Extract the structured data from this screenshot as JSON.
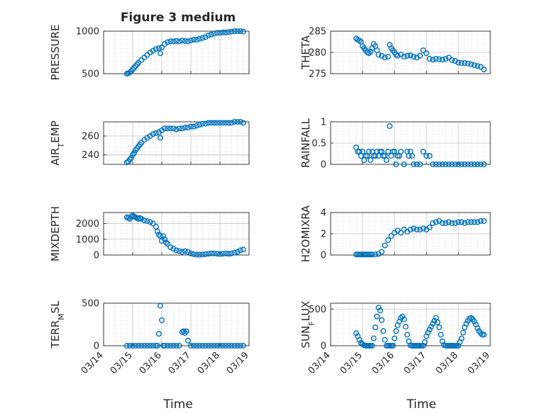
{
  "figure_title": "Figure 3 medium",
  "colors": {
    "marker": "#0072BD",
    "axis": "#262626",
    "grid": "#d0d0d0"
  },
  "chart_data": [
    {
      "type": "scatter",
      "ylabel": "PRESSURE",
      "title": "Figure 3 medium",
      "xlim": [
        0,
        5
      ],
      "ylim": [
        500,
        1000
      ],
      "yticks": [
        500,
        1000
      ],
      "xticklabels": [
        "03/14",
        "03/15",
        "03/16",
        "03/17",
        "03/18",
        "03/19"
      ],
      "x": [
        0.8,
        0.85,
        0.9,
        0.95,
        1.0,
        1.05,
        1.1,
        1.15,
        1.2,
        1.3,
        1.4,
        1.5,
        1.6,
        1.7,
        1.8,
        1.9,
        1.95,
        2.0,
        2.1,
        2.2,
        2.3,
        2.4,
        2.5,
        2.6,
        2.7,
        2.8,
        2.9,
        3.0,
        3.1,
        3.2,
        3.3,
        3.4,
        3.5,
        3.6,
        3.7,
        3.8,
        3.9,
        4.0,
        4.1,
        4.2,
        4.3,
        4.4,
        4.5,
        4.6,
        4.7,
        4.8
      ],
      "y": [
        500,
        505,
        515,
        530,
        550,
        570,
        590,
        610,
        630,
        660,
        690,
        720,
        750,
        770,
        790,
        800,
        740,
        810,
        850,
        870,
        880,
        880,
        885,
        880,
        890,
        885,
        880,
        890,
        900,
        900,
        910,
        920,
        930,
        950,
        960,
        970,
        980,
        980,
        985,
        985,
        990,
        995,
        1000,
        1000,
        1000,
        995
      ]
    },
    {
      "type": "scatter",
      "ylabel": "THETA",
      "xlim": [
        0,
        5
      ],
      "ylim": [
        275,
        285
      ],
      "yticks": [
        275,
        280,
        285
      ],
      "xticklabels": [
        "03/14",
        "03/15",
        "03/16",
        "03/17",
        "03/18",
        "03/19"
      ],
      "x": [
        0.8,
        0.85,
        0.9,
        0.95,
        1.0,
        1.05,
        1.1,
        1.15,
        1.2,
        1.25,
        1.3,
        1.35,
        1.4,
        1.45,
        1.5,
        1.6,
        1.7,
        1.8,
        1.85,
        1.9,
        1.95,
        2.0,
        2.05,
        2.1,
        2.2,
        2.3,
        2.4,
        2.5,
        2.6,
        2.7,
        2.8,
        2.9,
        3.0,
        3.1,
        3.2,
        3.3,
        3.4,
        3.5,
        3.6,
        3.7,
        3.8,
        3.9,
        4.0,
        4.1,
        4.2,
        4.3,
        4.4,
        4.5,
        4.6,
        4.7,
        4.8
      ],
      "y": [
        283.3,
        283.0,
        282.8,
        282.5,
        281.5,
        281.0,
        280.5,
        280.0,
        279.8,
        280.2,
        281.0,
        282.0,
        281.5,
        280.5,
        279.5,
        279.2,
        278.8,
        279.0,
        281.8,
        281.0,
        280.5,
        280.0,
        279.5,
        279.2,
        279.5,
        279.0,
        279.2,
        279.3,
        279.0,
        278.8,
        279.2,
        280.5,
        279.8,
        278.5,
        278.3,
        278.5,
        278.4,
        278.3,
        278.5,
        278.8,
        278.2,
        278.0,
        277.6,
        277.5,
        277.5,
        277.4,
        277.2,
        277.0,
        276.8,
        276.6,
        276.0
      ]
    },
    {
      "type": "scatter",
      "ylabel": "AIR_TEMP",
      "ylabel_main": "AIR",
      "ylabel_sub": "T",
      "ylabel_tail": "EMP",
      "xlim": [
        0,
        5
      ],
      "ylim": [
        230,
        275
      ],
      "yticks": [
        240,
        260
      ],
      "xticklabels": [
        "03/14",
        "03/15",
        "03/16",
        "03/17",
        "03/18",
        "03/19"
      ],
      "x": [
        0.8,
        0.85,
        0.9,
        0.95,
        1.0,
        1.05,
        1.1,
        1.15,
        1.2,
        1.25,
        1.3,
        1.4,
        1.5,
        1.6,
        1.7,
        1.8,
        1.9,
        1.95,
        2.0,
        2.1,
        2.2,
        2.3,
        2.4,
        2.5,
        2.6,
        2.7,
        2.8,
        2.9,
        3.0,
        3.1,
        3.2,
        3.3,
        3.4,
        3.5,
        3.6,
        3.7,
        3.8,
        3.9,
        4.0,
        4.1,
        4.2,
        4.3,
        4.4,
        4.5,
        4.6,
        4.7,
        4.8
      ],
      "y": [
        232,
        233,
        235,
        237,
        240,
        242,
        245,
        247,
        249,
        251,
        253,
        256,
        258,
        260,
        262,
        263,
        264,
        258,
        266,
        268,
        268,
        268,
        268,
        267,
        268,
        268,
        269,
        269,
        270,
        270,
        271,
        272,
        273,
        273,
        274,
        274,
        274,
        274,
        274,
        274,
        274,
        274,
        274,
        275,
        275,
        275,
        274
      ]
    },
    {
      "type": "scatter",
      "ylabel": "RAINFALL",
      "xlim": [
        0,
        5
      ],
      "ylim": [
        0,
        1
      ],
      "yticks": [
        0,
        0.5,
        1
      ],
      "yticklabels": [
        "0",
        "0.5",
        "1"
      ],
      "xticklabels": [
        "03/14",
        "03/15",
        "03/16",
        "03/17",
        "03/18",
        "03/19"
      ],
      "x": [
        0.8,
        0.85,
        0.9,
        0.95,
        1.0,
        1.05,
        1.1,
        1.15,
        1.2,
        1.25,
        1.3,
        1.35,
        1.4,
        1.45,
        1.5,
        1.55,
        1.6,
        1.65,
        1.7,
        1.75,
        1.8,
        1.85,
        1.9,
        1.95,
        2.0,
        2.05,
        2.1,
        2.15,
        2.2,
        2.3,
        2.4,
        2.45,
        2.5,
        2.55,
        2.6,
        2.7,
        2.8,
        2.9,
        3.0,
        3.1,
        3.2,
        3.3,
        3.4,
        3.5,
        3.6,
        3.7,
        3.8,
        3.9,
        4.0,
        4.1,
        4.2,
        4.3,
        4.4,
        4.5,
        4.6,
        4.7,
        4.8
      ],
      "y": [
        0.4,
        0.3,
        0.3,
        0.2,
        0.3,
        0.1,
        0.2,
        0.2,
        0.3,
        0.1,
        0.3,
        0.2,
        0.2,
        0.3,
        0.2,
        0.3,
        0.3,
        0.2,
        0.2,
        0.1,
        0.3,
        0.9,
        0.2,
        0.3,
        0.3,
        0.0,
        0.2,
        0.2,
        0.3,
        0.0,
        0.3,
        0.2,
        0.3,
        0.2,
        0.0,
        0.0,
        0.0,
        0.3,
        0.2,
        0.2,
        0.0,
        0.0,
        0.0,
        0.0,
        0.0,
        0.0,
        0.0,
        0.0,
        0.0,
        0.0,
        0.0,
        0.0,
        0.0,
        0.0,
        0.0,
        0.0,
        0.0
      ]
    },
    {
      "type": "scatter",
      "ylabel": "MIXDEPTH",
      "xlim": [
        0,
        5
      ],
      "ylim": [
        0,
        2700
      ],
      "yticks": [
        0,
        1000,
        2000
      ],
      "xticklabels": [
        "03/14",
        "03/15",
        "03/16",
        "03/17",
        "03/18",
        "03/19"
      ],
      "x": [
        0.8,
        0.85,
        0.9,
        0.95,
        1.0,
        1.05,
        1.1,
        1.15,
        1.2,
        1.25,
        1.3,
        1.4,
        1.5,
        1.6,
        1.7,
        1.8,
        1.85,
        1.9,
        1.95,
        2.0,
        2.05,
        2.1,
        2.15,
        2.2,
        2.3,
        2.4,
        2.5,
        2.6,
        2.7,
        2.8,
        2.9,
        3.0,
        3.1,
        3.2,
        3.3,
        3.4,
        3.5,
        3.6,
        3.7,
        3.8,
        3.9,
        4.0,
        4.1,
        4.2,
        4.3,
        4.4,
        4.5,
        4.6,
        4.7,
        4.8
      ],
      "y": [
        2400,
        2350,
        2300,
        2450,
        2500,
        2450,
        2400,
        2350,
        2300,
        2350,
        2300,
        2200,
        2150,
        2100,
        2000,
        1800,
        1500,
        1300,
        1200,
        900,
        1200,
        1000,
        800,
        700,
        500,
        400,
        300,
        250,
        200,
        250,
        200,
        100,
        50,
        20,
        20,
        30,
        50,
        80,
        100,
        100,
        80,
        60,
        80,
        100,
        80,
        100,
        150,
        200,
        300,
        350
      ]
    },
    {
      "type": "scatter",
      "ylabel": "H2OMIXRA",
      "xlim": [
        0,
        5
      ],
      "ylim": [
        0,
        4
      ],
      "yticks": [
        0,
        2,
        4
      ],
      "xticklabels": [
        "03/14",
        "03/15",
        "03/16",
        "03/17",
        "03/18",
        "03/19"
      ],
      "x": [
        0.8,
        0.85,
        0.9,
        0.95,
        1.0,
        1.05,
        1.1,
        1.15,
        1.2,
        1.25,
        1.3,
        1.4,
        1.5,
        1.6,
        1.7,
        1.8,
        1.9,
        2.0,
        2.1,
        2.2,
        2.3,
        2.4,
        2.5,
        2.6,
        2.7,
        2.8,
        2.9,
        3.0,
        3.1,
        3.2,
        3.3,
        3.4,
        3.5,
        3.6,
        3.7,
        3.8,
        3.9,
        4.0,
        4.1,
        4.2,
        4.3,
        4.4,
        4.5,
        4.6,
        4.7,
        4.8
      ],
      "y": [
        0.05,
        0.05,
        0.05,
        0.05,
        0.05,
        0.05,
        0.05,
        0.05,
        0.05,
        0.05,
        0.05,
        0.05,
        0.1,
        0.3,
        0.9,
        1.4,
        1.8,
        2.1,
        2.3,
        2.1,
        2.4,
        2.2,
        2.4,
        2.5,
        2.4,
        2.4,
        2.5,
        2.4,
        2.6,
        3.0,
        3.1,
        3.2,
        3.0,
        3.0,
        3.1,
        3.0,
        3.0,
        3.1,
        3.1,
        3.0,
        3.1,
        3.1,
        3.1,
        3.1,
        3.2,
        3.2
      ]
    },
    {
      "type": "scatter",
      "ylabel": "TERR_MSL",
      "ylabel_main": "TERR",
      "ylabel_sub": "M",
      "ylabel_tail": "SL",
      "xlim": [
        0,
        5
      ],
      "ylim": [
        0,
        500
      ],
      "yticks": [
        0,
        500
      ],
      "xticklabels": [
        "03/14",
        "03/15",
        "03/16",
        "03/17",
        "03/18",
        "03/19"
      ],
      "x": [
        0.8,
        0.9,
        1.0,
        1.1,
        1.2,
        1.3,
        1.4,
        1.5,
        1.6,
        1.7,
        1.8,
        1.85,
        1.9,
        1.95,
        2.0,
        2.05,
        2.1,
        2.2,
        2.3,
        2.4,
        2.5,
        2.6,
        2.7,
        2.75,
        2.8,
        2.85,
        2.9,
        3.0,
        3.1,
        3.2,
        3.3,
        3.4,
        3.5,
        3.6,
        3.7,
        3.8,
        3.9,
        4.0,
        4.1,
        4.2,
        4.3,
        4.4,
        4.5,
        4.6,
        4.7,
        4.8
      ],
      "y": [
        0,
        0,
        0,
        0,
        0,
        0,
        0,
        0,
        0,
        0,
        0,
        0,
        140,
        470,
        300,
        0,
        0,
        0,
        0,
        0,
        0,
        0,
        160,
        170,
        150,
        170,
        60,
        0,
        0,
        0,
        0,
        0,
        0,
        0,
        0,
        0,
        0,
        0,
        0,
        0,
        0,
        0,
        0,
        0,
        0,
        0
      ]
    },
    {
      "type": "scatter",
      "ylabel": "SUN_FLUX",
      "ylabel_main": "SUN",
      "ylabel_sub": "F",
      "ylabel_tail": "LUX",
      "xlim": [
        0,
        5
      ],
      "ylim": [
        0,
        580
      ],
      "yticks": [
        0,
        500
      ],
      "xticklabels": [
        "03/14",
        "03/15",
        "03/16",
        "03/17",
        "03/18",
        "03/19"
      ],
      "x": [
        0.8,
        0.85,
        0.9,
        0.95,
        1.0,
        1.05,
        1.1,
        1.15,
        1.2,
        1.25,
        1.3,
        1.35,
        1.4,
        1.45,
        1.5,
        1.55,
        1.6,
        1.65,
        1.7,
        1.75,
        1.8,
        1.85,
        1.9,
        1.95,
        2.0,
        2.05,
        2.1,
        2.15,
        2.2,
        2.25,
        2.3,
        2.35,
        2.4,
        2.45,
        2.5,
        2.55,
        2.6,
        2.65,
        2.7,
        2.75,
        2.8,
        2.85,
        2.9,
        2.95,
        3.0,
        3.05,
        3.1,
        3.15,
        3.2,
        3.25,
        3.3,
        3.35,
        3.4,
        3.45,
        3.5,
        3.55,
        3.6,
        3.65,
        3.7,
        3.75,
        3.8,
        3.85,
        3.9,
        3.95,
        4.0,
        4.05,
        4.1,
        4.15,
        4.2,
        4.25,
        4.3,
        4.35,
        4.4,
        4.45,
        4.5,
        4.55,
        4.6,
        4.65,
        4.7,
        4.75,
        4.8
      ],
      "y": [
        170,
        130,
        80,
        40,
        20,
        5,
        0,
        0,
        0,
        0,
        0,
        100,
        250,
        400,
        520,
        480,
        350,
        200,
        80,
        0,
        0,
        0,
        0,
        0,
        100,
        200,
        280,
        330,
        380,
        400,
        360,
        260,
        150,
        60,
        5,
        0,
        0,
        0,
        0,
        0,
        0,
        0,
        0,
        50,
        130,
        180,
        220,
        260,
        300,
        340,
        380,
        320,
        250,
        150,
        60,
        10,
        0,
        0,
        0,
        0,
        0,
        0,
        0,
        0,
        0,
        50,
        100,
        180,
        250,
        300,
        340,
        370,
        380,
        360,
        330,
        290,
        240,
        200,
        170,
        150,
        150
      ]
    }
  ],
  "xlabel": "Time"
}
